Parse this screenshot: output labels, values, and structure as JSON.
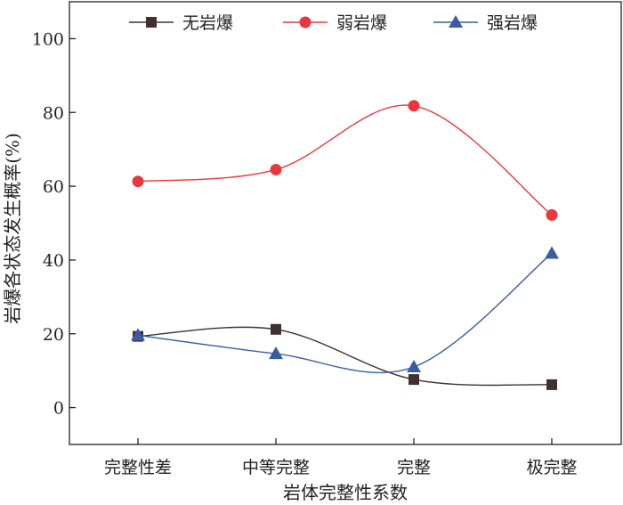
{
  "chart_data": {
    "type": "line",
    "title": "",
    "xlabel": "岩体完整性系数",
    "ylabel": "岩爆各状态发生概率(%)",
    "categories": [
      "完整性差",
      "中等完整",
      "完整",
      "极完整"
    ],
    "ylim": [
      -10,
      110
    ],
    "yticks": [
      0,
      20,
      40,
      60,
      80,
      100
    ],
    "grid": false,
    "legend_position": "top",
    "series": [
      {
        "name": "无岩爆",
        "values": [
          19.3,
          21.2,
          7.6,
          6.2
        ],
        "color": "#40302e",
        "marker": "square"
      },
      {
        "name": "弱岩爆",
        "values": [
          61.3,
          64.5,
          81.8,
          52.2
        ],
        "color": "#e8383d",
        "marker": "circle"
      },
      {
        "name": "强岩爆",
        "values": [
          19.6,
          14.6,
          11.0,
          41.8
        ],
        "color": "#3b5ba5",
        "marker": "triangle"
      }
    ]
  }
}
